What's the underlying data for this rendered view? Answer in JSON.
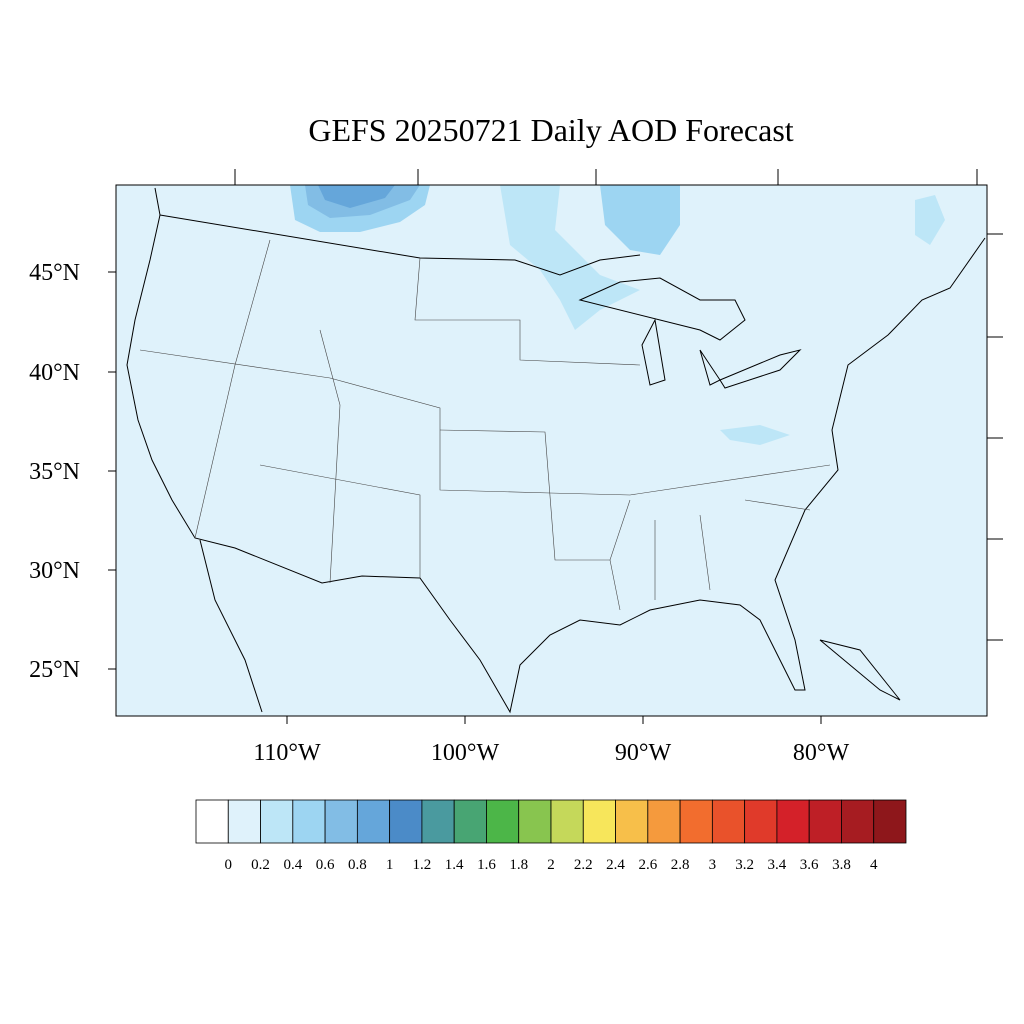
{
  "title": "GEFS 20250721 Daily AOD Forecast",
  "lat_labels": [
    "45°N",
    "40°N",
    "35°N",
    "30°N",
    "25°N"
  ],
  "lon_labels": [
    "110°W",
    "100°W",
    "90°W",
    "80°W"
  ],
  "colorbar": {
    "levels": [
      0,
      0.2,
      0.4,
      0.6,
      0.8,
      1,
      1.2,
      1.4,
      1.6,
      1.8,
      2,
      2.2,
      2.4,
      2.6,
      2.8,
      3,
      3.2,
      3.4,
      3.6,
      3.8,
      4
    ],
    "colors": [
      "#ffffff",
      "#dff2fb",
      "#bde6f7",
      "#9dd5f2",
      "#82bde5",
      "#65a6da",
      "#4b8bc8",
      "#4a9a9f",
      "#48a573",
      "#4cb648",
      "#88c54f",
      "#c5d85a",
      "#f7e65b",
      "#f7bf4a",
      "#f59a3d",
      "#f26d2e",
      "#e9522b",
      "#e03a2a",
      "#d42129",
      "#be1f26",
      "#a61c21",
      "#8e171b"
    ]
  }
}
